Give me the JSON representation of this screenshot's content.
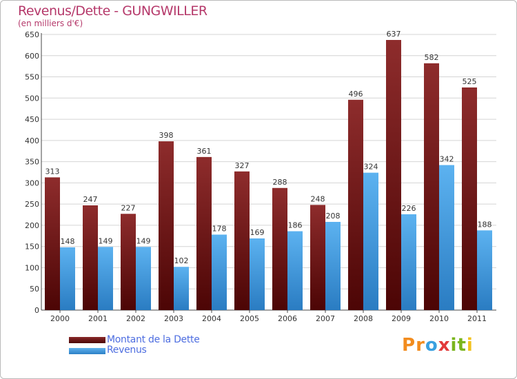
{
  "chart_data": {
    "type": "bar",
    "title": "Revenus/Dette - GUNGWILLER",
    "subtitle": "(en milliers d'€)",
    "categories": [
      "2000",
      "2001",
      "2002",
      "2003",
      "2004",
      "2005",
      "2006",
      "2007",
      "2008",
      "2009",
      "2010",
      "2011"
    ],
    "series": [
      {
        "name": "Montant de la Dette",
        "values": [
          313,
          247,
          227,
          398,
          361,
          327,
          288,
          248,
          496,
          637,
          582,
          525
        ],
        "color": "#7a1c1c"
      },
      {
        "name": "Revenus",
        "values": [
          148,
          149,
          149,
          102,
          178,
          169,
          186,
          208,
          324,
          226,
          342,
          188
        ],
        "color": "#4aa3e6"
      }
    ],
    "ylim": [
      0,
      650
    ],
    "yticks": [
      0,
      50,
      100,
      150,
      200,
      250,
      300,
      350,
      400,
      450,
      500,
      550,
      600,
      650
    ],
    "grid": true,
    "legend_position": "bottom-left"
  },
  "logo": {
    "letters": [
      "P",
      "r",
      "o",
      "x",
      "i",
      "t",
      "i"
    ],
    "colors": [
      "#f28c1e",
      "#f28c1e",
      "#3aa0e0",
      "#e23a3a",
      "#7ab51d",
      "#7ab51d",
      "#f2c21e"
    ]
  }
}
